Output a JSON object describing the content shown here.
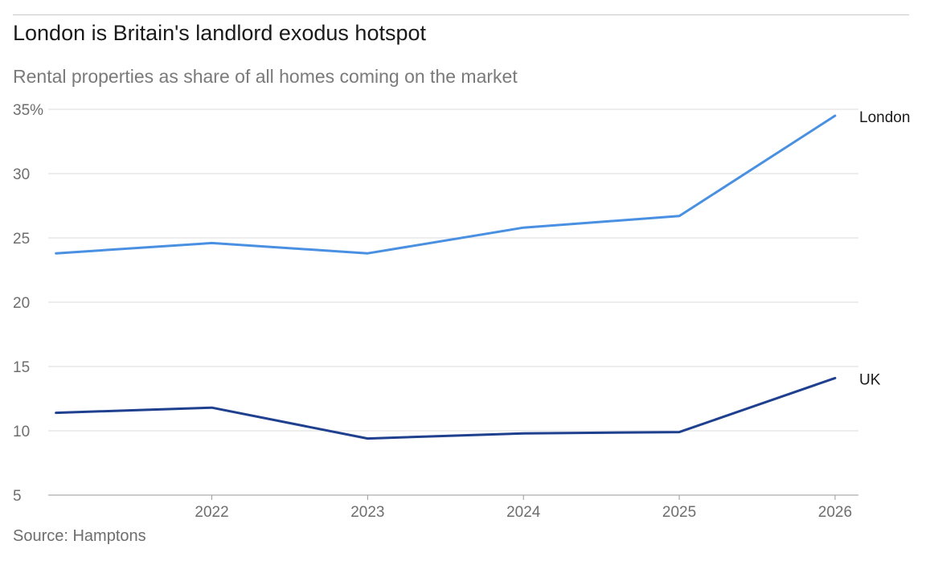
{
  "chart_data": {
    "type": "line",
    "title": "London is Britain's landlord exodus hotspot",
    "subtitle": "Rental properties as share of all homes coming on the market",
    "source": "Source: Hamptons",
    "xlabel": "",
    "ylabel": "",
    "x": [
      2021.25,
      2022.25,
      2023.25,
      2024.25,
      2025.25,
      2026.25
    ],
    "x_ticks": [
      "2022",
      "2023",
      "2024",
      "2025",
      "2026"
    ],
    "y_ticks": [
      "35%",
      "30",
      "25",
      "20",
      "15",
      "10",
      "5"
    ],
    "ylim": [
      5,
      35
    ],
    "grid": true,
    "series": [
      {
        "name": "London",
        "color": "#4a90e2",
        "values": [
          23.8,
          24.6,
          23.8,
          25.8,
          26.7,
          34.5
        ]
      },
      {
        "name": "UK",
        "color": "#1f3f8f",
        "values": [
          11.4,
          11.8,
          9.4,
          9.8,
          9.9,
          14.1
        ]
      }
    ]
  }
}
